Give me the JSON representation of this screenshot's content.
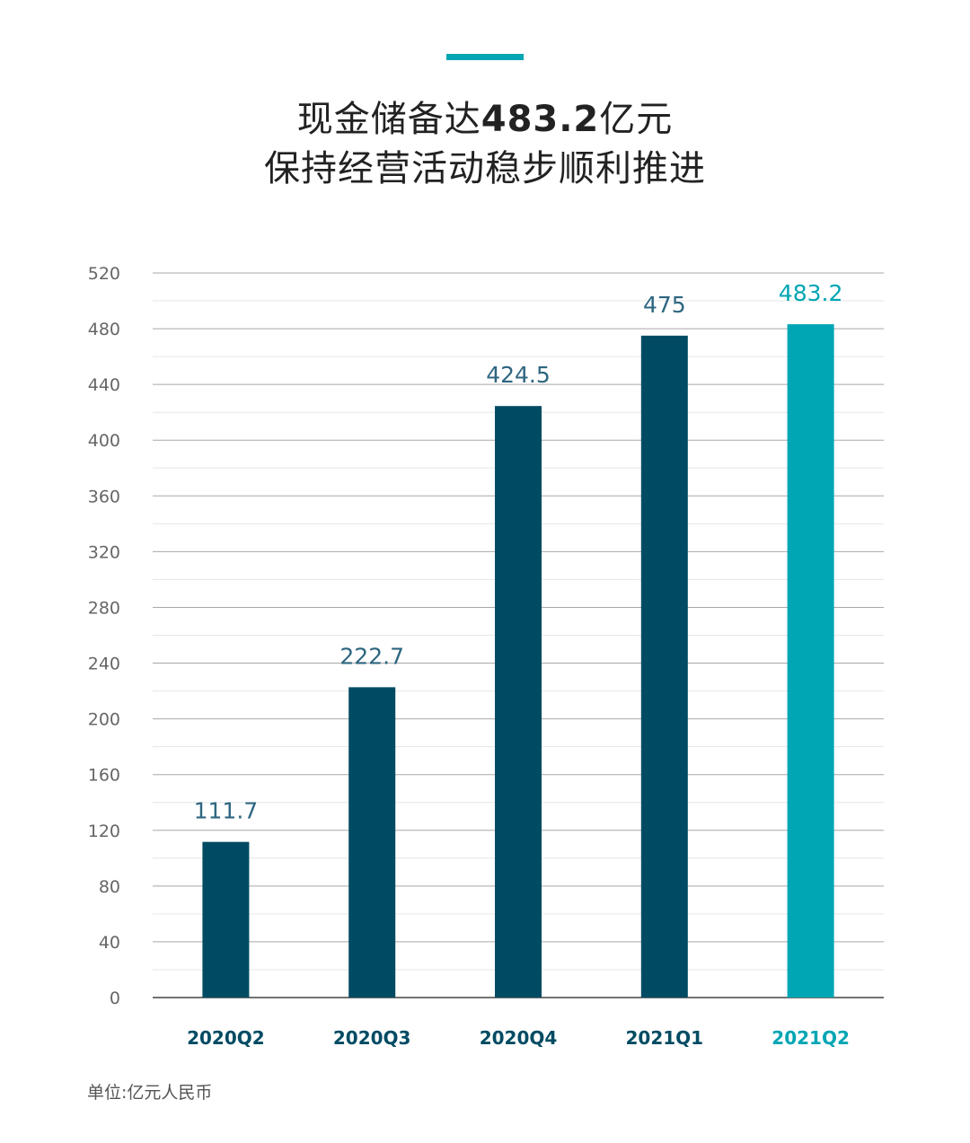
{
  "header": {
    "title_pre": "现金储备达",
    "title_highlight": "483.2",
    "title_post": "亿元",
    "subtitle": "保持经营活动稳步顺利推进"
  },
  "footer": {
    "unit": "单位:亿元人民币"
  },
  "colors": {
    "primary": "#004b63",
    "highlight": "#00a6b4",
    "label": "#2e6680"
  },
  "chart_data": {
    "type": "bar",
    "categories": [
      "2020Q2",
      "2020Q3",
      "2020Q4",
      "2021Q1",
      "2021Q2"
    ],
    "values": [
      111.7,
      222.7,
      424.5,
      475,
      483.2
    ],
    "data_labels": [
      "111.7",
      "222.7",
      "424.5",
      "475",
      "483.2"
    ],
    "highlighted": [
      "2021Q2"
    ],
    "ylim": [
      0,
      520
    ],
    "yticks": [
      0,
      40,
      80,
      120,
      160,
      200,
      240,
      280,
      320,
      360,
      400,
      440,
      480,
      520
    ],
    "minor_grid_step": 20,
    "grid": true,
    "title": "",
    "xlabel": "",
    "ylabel": ""
  }
}
